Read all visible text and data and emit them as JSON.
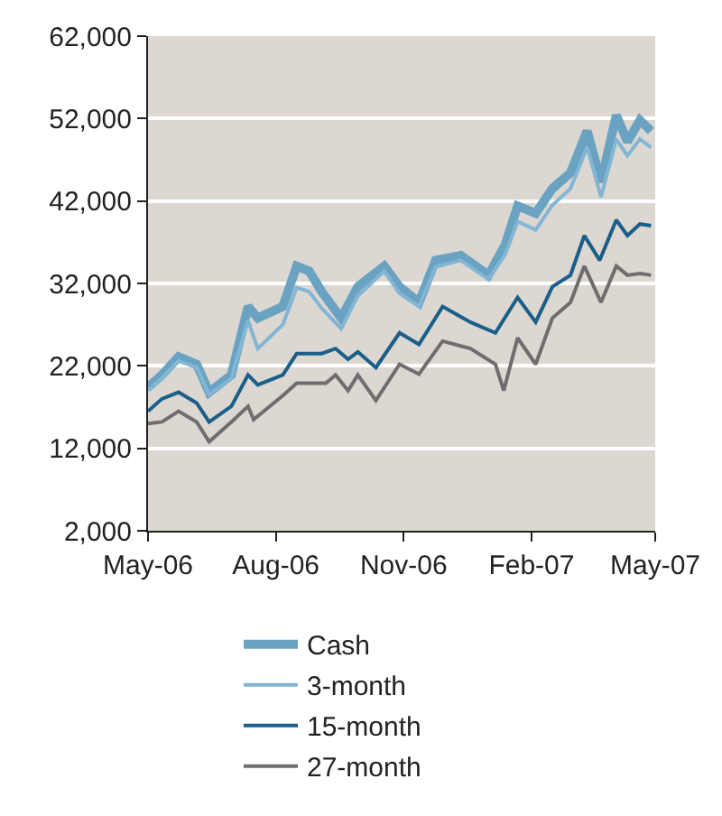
{
  "chart_data": {
    "type": "line",
    "ylim": [
      2000,
      62000
    ],
    "yticks": [
      {
        "value": 2000,
        "label": "2,000"
      },
      {
        "value": 12000,
        "label": "12,000"
      },
      {
        "value": 22000,
        "label": "22,000"
      },
      {
        "value": 32000,
        "label": "32,000"
      },
      {
        "value": 42000,
        "label": "42,000"
      },
      {
        "value": 52000,
        "label": "52,000"
      },
      {
        "value": 62000,
        "label": "62,000"
      }
    ],
    "xlim": [
      "2006-05-01",
      "2007-05-01"
    ],
    "xticks": [
      {
        "value": "2006-05-01",
        "label": "May-06"
      },
      {
        "value": "2006-08-01",
        "label": "Aug-06"
      },
      {
        "value": "2006-11-01",
        "label": "Nov-06"
      },
      {
        "value": "2007-02-01",
        "label": "Feb-07"
      },
      {
        "value": "2007-05-01",
        "label": "May-07"
      }
    ],
    "grid": "y",
    "legend": "bottom",
    "line_style": "solid",
    "marker": "none",
    "series": [
      {
        "name": "Cash",
        "color": "#6aa3c2",
        "x": [
          "2006-05-01",
          "2006-05-11",
          "2006-05-23",
          "2006-06-05",
          "2006-06-14",
          "2006-06-30",
          "2006-07-12",
          "2006-07-19",
          "2006-08-06",
          "2006-08-16",
          "2006-08-25",
          "2006-09-03",
          "2006-09-17",
          "2006-09-29",
          "2006-10-18",
          "2006-10-29",
          "2006-11-12",
          "2006-11-24",
          "2006-12-12",
          "2007-01-01",
          "2007-01-13",
          "2007-01-22",
          "2007-02-04",
          "2007-02-16",
          "2007-03-01",
          "2007-03-13",
          "2007-03-23",
          "2007-04-03",
          "2007-04-11",
          "2007-04-20",
          "2007-04-28"
        ],
        "values": [
          19400,
          20900,
          23100,
          22200,
          18800,
          20900,
          29200,
          27800,
          29200,
          34100,
          33500,
          31000,
          27800,
          31600,
          34100,
          31600,
          29700,
          34800,
          35400,
          33000,
          36700,
          41400,
          40500,
          43500,
          45400,
          50500,
          44300,
          52400,
          49200,
          51800,
          50500
        ]
      },
      {
        "name": "3-month",
        "color": "#82b6d4",
        "x": [
          "2006-05-01",
          "2006-05-11",
          "2006-05-23",
          "2006-06-05",
          "2006-06-14",
          "2006-06-30",
          "2006-07-12",
          "2006-07-19",
          "2006-08-06",
          "2006-08-16",
          "2006-08-25",
          "2006-09-03",
          "2006-09-17",
          "2006-09-29",
          "2006-10-18",
          "2006-10-29",
          "2006-11-12",
          "2006-11-24",
          "2006-12-12",
          "2007-01-01",
          "2007-01-13",
          "2007-01-22",
          "2007-02-04",
          "2007-02-16",
          "2007-03-01",
          "2007-03-13",
          "2007-03-23",
          "2007-04-03",
          "2007-04-11",
          "2007-04-20",
          "2007-04-28"
        ],
        "values": [
          19000,
          20500,
          22600,
          21800,
          18500,
          20500,
          27500,
          24100,
          27000,
          31500,
          31000,
          29000,
          26500,
          30500,
          33500,
          30800,
          29200,
          34000,
          34800,
          32500,
          35500,
          39500,
          38500,
          41500,
          43500,
          48500,
          42500,
          49500,
          47500,
          49500,
          48500
        ]
      },
      {
        "name": "15-month",
        "color": "#1a5f8a",
        "x": [
          "2006-05-01",
          "2006-05-11",
          "2006-05-23",
          "2006-06-05",
          "2006-06-14",
          "2006-06-30",
          "2006-07-12",
          "2006-07-19",
          "2006-08-06",
          "2006-08-16",
          "2006-09-03",
          "2006-09-13",
          "2006-09-22",
          "2006-09-29",
          "2006-10-12",
          "2006-10-29",
          "2006-11-12",
          "2006-11-29",
          "2006-12-19",
          "2007-01-06",
          "2007-01-22",
          "2007-02-04",
          "2007-02-16",
          "2007-03-01",
          "2007-03-11",
          "2007-03-22",
          "2007-04-03",
          "2007-04-11",
          "2007-04-20",
          "2007-04-28"
        ],
        "values": [
          16500,
          18000,
          18800,
          17500,
          15200,
          17100,
          20900,
          19700,
          20900,
          23500,
          23500,
          24100,
          22800,
          23700,
          21800,
          26000,
          24600,
          29200,
          27300,
          26000,
          30300,
          27300,
          31600,
          33000,
          37800,
          34800,
          39700,
          37800,
          39200,
          39000
        ]
      },
      {
        "name": "27-month",
        "color": "#6e6e70",
        "x": [
          "2006-05-01",
          "2006-05-11",
          "2006-05-23",
          "2006-06-05",
          "2006-06-14",
          "2006-06-30",
          "2006-07-12",
          "2006-07-16",
          "2006-08-06",
          "2006-08-16",
          "2006-09-06",
          "2006-09-13",
          "2006-09-22",
          "2006-09-29",
          "2006-10-12",
          "2006-10-29",
          "2006-11-12",
          "2006-11-29",
          "2006-12-19",
          "2007-01-06",
          "2007-01-12",
          "2007-01-22",
          "2007-02-04",
          "2007-02-16",
          "2007-03-01",
          "2007-03-11",
          "2007-03-23",
          "2007-04-03",
          "2007-04-11",
          "2007-04-20",
          "2007-04-28"
        ],
        "values": [
          15000,
          15200,
          16500,
          15200,
          12800,
          15200,
          17100,
          15500,
          18400,
          19900,
          19900,
          20900,
          19000,
          20900,
          17800,
          22200,
          21000,
          25000,
          24100,
          22200,
          19000,
          25400,
          22200,
          27800,
          29700,
          34100,
          29700,
          34100,
          33000,
          33200,
          33000
        ]
      }
    ]
  }
}
